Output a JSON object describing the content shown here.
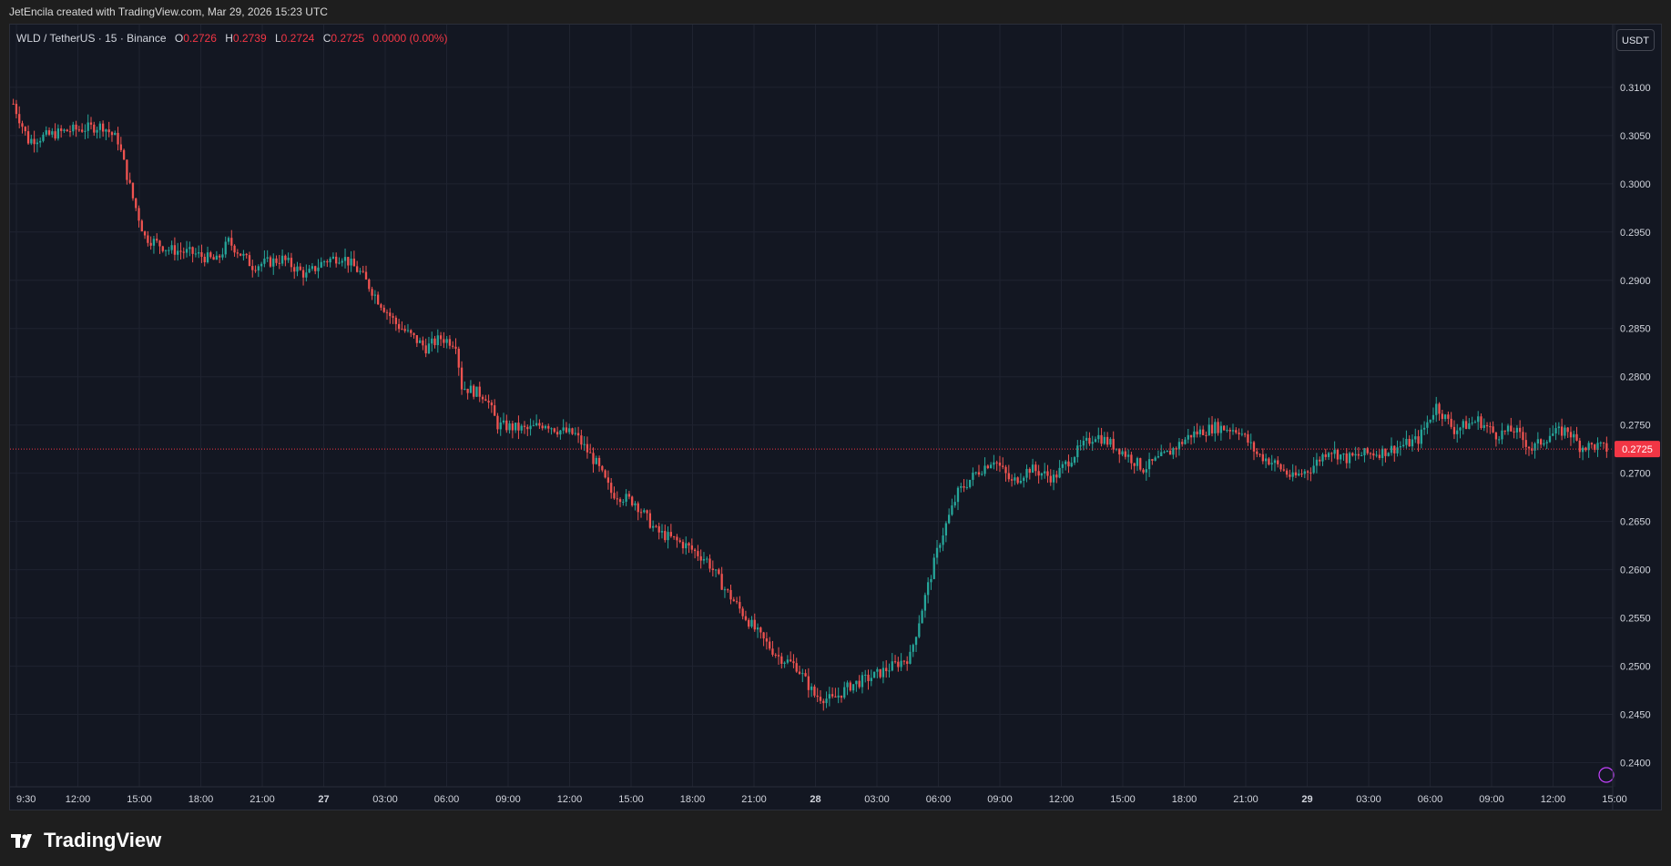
{
  "caption": "JetEncila created with TradingView.com, Mar 29, 2026 15:23 UTC",
  "legend": {
    "symbol": "WLD / TetherUS · 15 · Binance",
    "o_key": "O",
    "o_val": "0.2726",
    "h_key": "H",
    "h_val": "0.2739",
    "l_key": "L",
    "l_val": "0.2724",
    "c_key": "C",
    "c_val": "0.2725",
    "change": "0.0000 (0.00%)"
  },
  "currency_button": "USDT",
  "last_price_label": "0.2725",
  "brand": {
    "name": "TradingView",
    "logo_icon": "tradingview-logo-icon"
  },
  "colors": {
    "background": "#131722",
    "grid": "#1f2330",
    "up": "#26a69a",
    "down": "#ef5350",
    "text": "#d1d4dc",
    "last_price": "#f23645"
  },
  "chart_data": {
    "type": "candlestick",
    "interval": "15",
    "ylim": [
      0.2375,
      0.3165
    ],
    "y_ticks": [
      "0.3100",
      "0.3050",
      "0.3000",
      "0.2950",
      "0.2900",
      "0.2850",
      "0.2800",
      "0.2750",
      "0.2700",
      "0.2650",
      "0.2600",
      "0.2550",
      "0.2500",
      "0.2450",
      "0.2400"
    ],
    "x_ticks": [
      "9:30",
      "12:00",
      "15:00",
      "18:00",
      "21:00",
      "27",
      "03:00",
      "06:00",
      "09:00",
      "12:00",
      "15:00",
      "18:00",
      "21:00",
      "28",
      "03:00",
      "06:00",
      "09:00",
      "12:00",
      "15:00",
      "18:00",
      "21:00",
      "29",
      "03:00",
      "06:00",
      "09:00",
      "12:00",
      "15:00"
    ],
    "last_price": 0.2725,
    "price_path": [
      [
        0,
        0.3083
      ],
      [
        5,
        0.3045
      ],
      [
        18,
        0.3055
      ],
      [
        30,
        0.306
      ],
      [
        35,
        0.3045
      ],
      [
        40,
        0.2985
      ],
      [
        44,
        0.2945
      ],
      [
        52,
        0.2932
      ],
      [
        60,
        0.2928
      ],
      [
        68,
        0.292
      ],
      [
        72,
        0.294
      ],
      [
        80,
        0.2915
      ],
      [
        90,
        0.2922
      ],
      [
        98,
        0.2905
      ],
      [
        104,
        0.292
      ],
      [
        110,
        0.2925
      ],
      [
        116,
        0.2908
      ],
      [
        122,
        0.288
      ],
      [
        128,
        0.2855
      ],
      [
        134,
        0.284
      ],
      [
        138,
        0.283
      ],
      [
        143,
        0.284
      ],
      [
        148,
        0.2835
      ],
      [
        150,
        0.279
      ],
      [
        158,
        0.278
      ],
      [
        162,
        0.275
      ],
      [
        172,
        0.2745
      ],
      [
        178,
        0.2752
      ],
      [
        182,
        0.2745
      ],
      [
        188,
        0.274
      ],
      [
        195,
        0.271
      ],
      [
        200,
        0.268
      ],
      [
        208,
        0.267
      ],
      [
        215,
        0.264
      ],
      [
        225,
        0.2625
      ],
      [
        232,
        0.261
      ],
      [
        238,
        0.258
      ],
      [
        244,
        0.2555
      ],
      [
        250,
        0.253
      ],
      [
        256,
        0.251
      ],
      [
        262,
        0.25
      ],
      [
        268,
        0.247
      ],
      [
        274,
        0.2465
      ],
      [
        280,
        0.248
      ],
      [
        288,
        0.249
      ],
      [
        294,
        0.25
      ],
      [
        300,
        0.251
      ],
      [
        304,
        0.256
      ],
      [
        310,
        0.263
      ],
      [
        316,
        0.268
      ],
      [
        322,
        0.27
      ],
      [
        328,
        0.2715
      ],
      [
        334,
        0.269
      ],
      [
        340,
        0.2705
      ],
      [
        348,
        0.2695
      ],
      [
        355,
        0.272
      ],
      [
        362,
        0.274
      ],
      [
        370,
        0.2725
      ],
      [
        378,
        0.2705
      ],
      [
        386,
        0.272
      ],
      [
        394,
        0.274
      ],
      [
        402,
        0.2748
      ],
      [
        410,
        0.2745
      ],
      [
        416,
        0.272
      ],
      [
        422,
        0.271
      ],
      [
        428,
        0.2695
      ],
      [
        434,
        0.2705
      ],
      [
        440,
        0.2725
      ],
      [
        446,
        0.2715
      ],
      [
        452,
        0.272
      ],
      [
        458,
        0.2722
      ],
      [
        464,
        0.2728
      ],
      [
        470,
        0.2735
      ],
      [
        476,
        0.277
      ],
      [
        482,
        0.2745
      ],
      [
        490,
        0.2755
      ],
      [
        496,
        0.274
      ],
      [
        502,
        0.2745
      ],
      [
        508,
        0.2725
      ],
      [
        514,
        0.274
      ],
      [
        520,
        0.2745
      ],
      [
        524,
        0.2728
      ],
      [
        530,
        0.2728
      ],
      [
        533,
        0.2725
      ]
    ]
  }
}
